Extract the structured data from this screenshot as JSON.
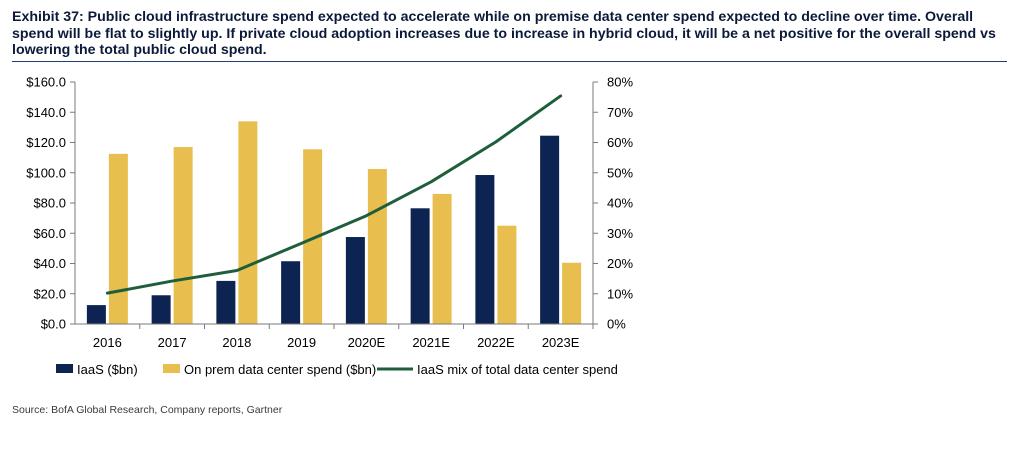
{
  "header": {
    "title": "Exhibit 37: Public cloud infrastructure spend expected to accelerate while on premise data center spend expected to decline over time. Overall spend will be flat to slightly up.  If private cloud adoption increases due to increase in hybrid cloud, it will be a net positive for the overall spend vs lowering the total public cloud spend."
  },
  "footer": {
    "source": "Source: BofA Global Research, Company reports, Gartner"
  },
  "chart_data": {
    "type": "bar",
    "categories": [
      "2016",
      "2017",
      "2018",
      "2019",
      "2020E",
      "2021E",
      "2022E",
      "2023E"
    ],
    "series": [
      {
        "name": "IaaS ($bn)",
        "type": "bar",
        "axis": "left",
        "color": "#0d2452",
        "values": [
          12.5,
          19,
          28.5,
          41.5,
          57.5,
          76.5,
          98.5,
          124.5
        ]
      },
      {
        "name": "On prem data center spend ($bn)",
        "type": "bar",
        "axis": "left",
        "color": "#e8bf4e",
        "values": [
          112.5,
          117,
          134,
          115.5,
          102.5,
          86,
          65,
          40.5
        ]
      },
      {
        "name": "IaaS mix of total data center spend",
        "type": "line",
        "axis": "right",
        "color": "#1e5e3a",
        "values": [
          10.2,
          14.2,
          17.7,
          26.7,
          35.8,
          47,
          60.2,
          75.4
        ]
      }
    ],
    "y_left": {
      "min": 0,
      "max": 160,
      "step": 20,
      "tick_labels": [
        "$0.0",
        "$20.0",
        "$40.0",
        "$60.0",
        "$80.0",
        "$100.0",
        "$120.0",
        "$140.0",
        "$160.0"
      ]
    },
    "y_right": {
      "min": 0,
      "max": 80,
      "step": 10,
      "tick_labels": [
        "0%",
        "10%",
        "20%",
        "30%",
        "40%",
        "50%",
        "60%",
        "70%",
        "80%"
      ]
    },
    "grid": false,
    "legend_position": "bottom"
  }
}
